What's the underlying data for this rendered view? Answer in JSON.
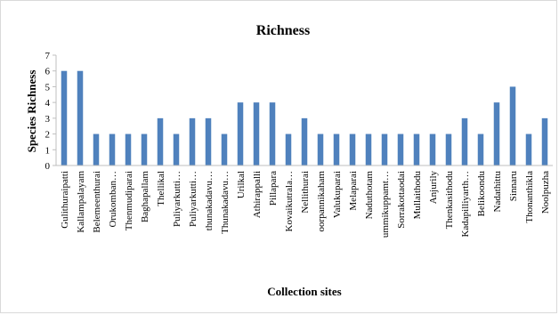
{
  "chart_data": {
    "type": "bar",
    "title": "Richness",
    "xlabel": "Collection sites",
    "ylabel": "Species Richness",
    "ylim": [
      0,
      7
    ],
    "yticks": [
      0,
      1,
      2,
      3,
      4,
      5,
      6,
      7
    ],
    "grid": false,
    "legend": "none",
    "bar_color": "#4f81bd",
    "categories": [
      "Gulithuraipatti",
      "Kallampalayam",
      "Belemeenthurai",
      "Orukomban…",
      "Thenmudiparai",
      "Baghapallam",
      "Thellikal",
      "Puliyarkutti…",
      "Puliyarkutti…",
      "thunakadavu…",
      "Thunakadavu…",
      "Urilkal",
      "Athirappalli",
      "Pillapara",
      "Kovaikutrala…",
      "Nellithurai",
      "oorpannikaham",
      "Valukuparai",
      "Melaparai",
      "Naduthotam",
      "ummikuppamt…",
      "Sorrakottaodai",
      "Mullaithodu",
      "Anjurily",
      "Thenkasithodu",
      "Kadapilliyarth…",
      "Belikoondu",
      "Nadathittu",
      "Sinnaru",
      "Thonanthikla",
      "Noolpuzha"
    ],
    "values": [
      6,
      6,
      2,
      2,
      2,
      2,
      3,
      2,
      3,
      3,
      2,
      4,
      4,
      4,
      2,
      3,
      2,
      2,
      2,
      2,
      2,
      2,
      2,
      2,
      2,
      3,
      2,
      4,
      5,
      2,
      3
    ]
  }
}
